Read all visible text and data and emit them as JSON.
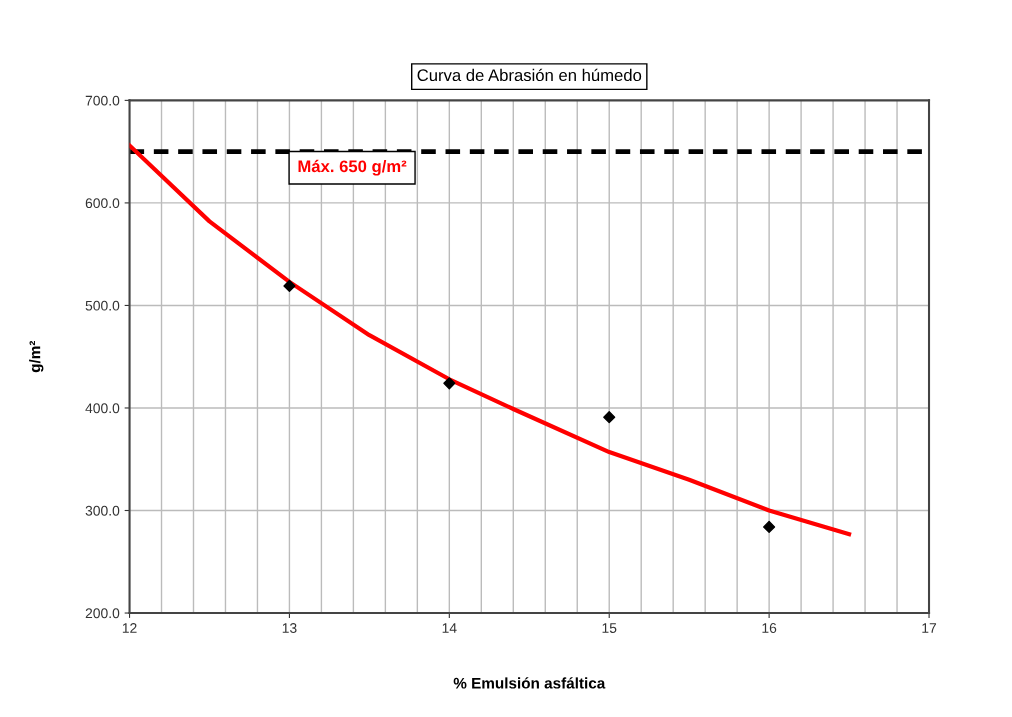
{
  "chart_data": {
    "type": "scatter",
    "title": "Curva de Abrasión en húmedo",
    "xlabel": "% Emulsión asfáltica",
    "ylabel": "g/m²",
    "series": [
      {
        "color": "#000000",
        "marker": "diamond",
        "x": [
          13,
          14,
          15,
          16
        ],
        "values": [
          519,
          424,
          391,
          284
        ]
      },
      {
        "type": "line",
        "color": "#ff0000",
        "marker": "none",
        "x": [
          12,
          12.5,
          13,
          13.5,
          14,
          14.4,
          15,
          15.5,
          16,
          16.5
        ],
        "values": [
          656,
          582,
          523,
          471,
          428,
          399,
          357,
          330,
          300,
          277
        ]
      }
    ],
    "xlim": [
      12,
      17
    ],
    "ylim": [
      200,
      700
    ],
    "xticks": [
      12,
      {
        "value": 12.2,
        "label": null
      },
      {
        "value": 12.4,
        "label": null
      },
      {
        "value": 12.6,
        "label": null
      },
      {
        "value": 12.8,
        "label": null
      },
      13,
      {
        "value": 13.2,
        "label": null
      },
      {
        "value": 13.4,
        "label": null
      },
      {
        "value": 13.6,
        "label": null
      },
      {
        "value": 13.8,
        "label": null
      },
      14,
      {
        "value": 14.2,
        "label": null
      },
      {
        "value": 14.4,
        "label": null
      },
      {
        "value": 14.6,
        "label": null
      },
      {
        "value": 14.8,
        "label": null
      },
      15,
      {
        "value": 15.2,
        "label": null
      },
      {
        "value": 15.4,
        "label": null
      },
      {
        "value": 15.6,
        "label": null
      },
      {
        "value": 15.8,
        "label": null
      },
      16,
      {
        "value": 16.2,
        "label": null
      },
      {
        "value": 16.4,
        "label": null
      },
      {
        "value": 16.6,
        "label": null
      },
      {
        "value": 16.8,
        "label": null
      },
      17
    ],
    "yticks": [
      {
        "value": 200,
        "label": "200.0"
      },
      {
        "value": 300,
        "label": "300.0"
      },
      {
        "value": 400,
        "label": "400.0"
      },
      {
        "value": 500,
        "label": "500.0"
      },
      {
        "value": 600,
        "label": "600.0"
      },
      {
        "value": 700,
        "label": "700.0"
      }
    ],
    "grid": true,
    "ref_lines": [
      {
        "axis": "y",
        "value": 650,
        "label": "Máx. 650 g/m²",
        "color": "#000000",
        "line_style": "dashed"
      }
    ]
  }
}
